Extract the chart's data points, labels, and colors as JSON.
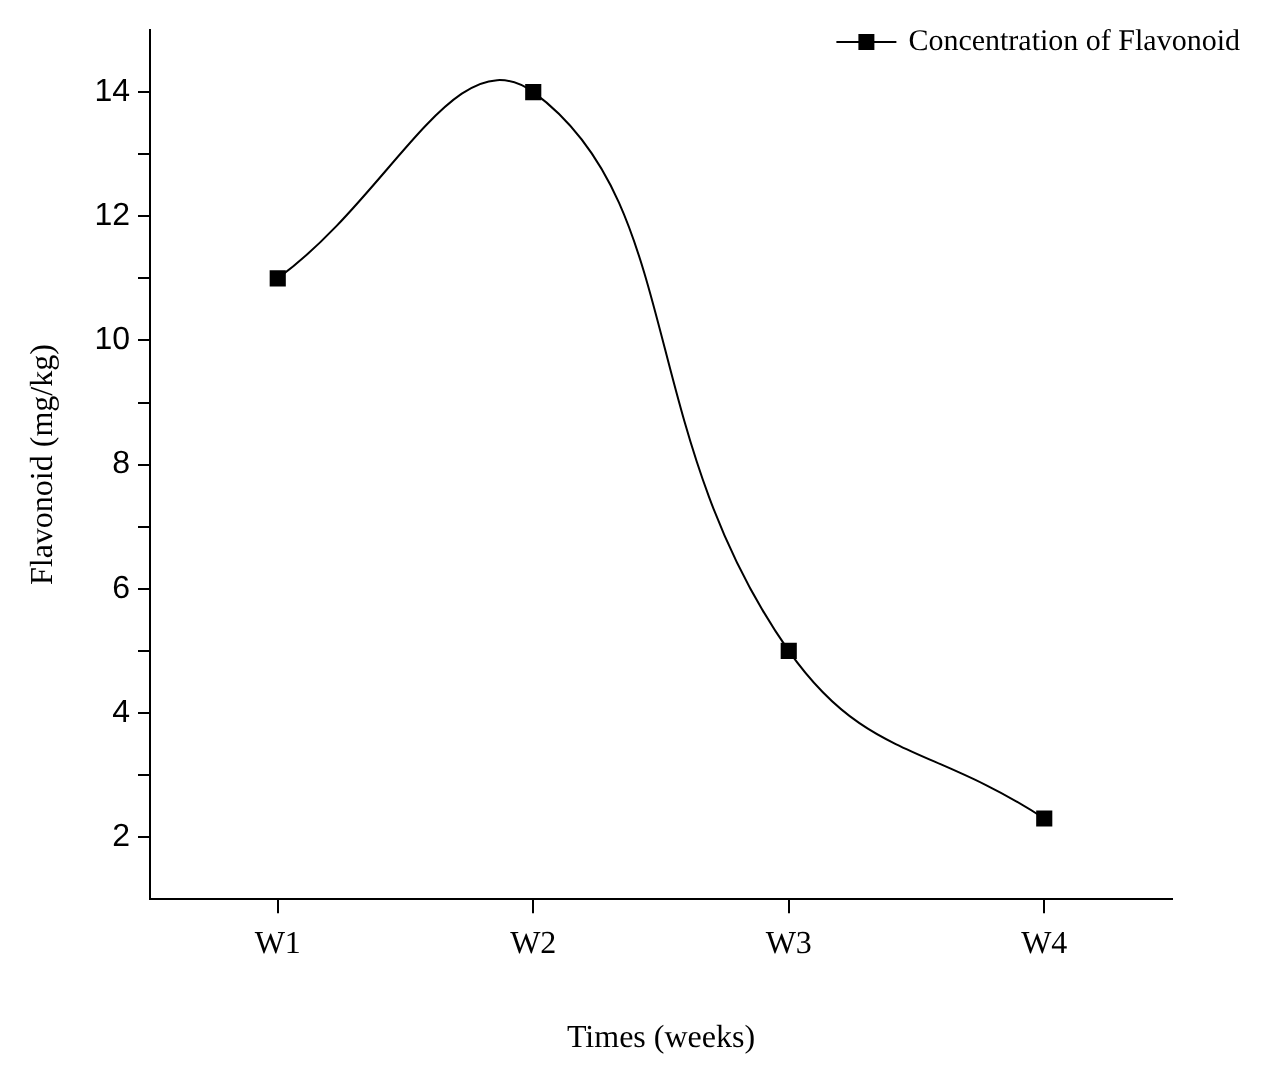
{
  "chart_data": {
    "type": "line",
    "xlabel": "Times (weeks)",
    "ylabel": "Flavonoid (mg/kg)",
    "categories": [
      "W1",
      "W2",
      "W3",
      "W4"
    ],
    "series": [
      {
        "name": "Concentration of Flavonoid",
        "color": "#000000",
        "values": [
          11,
          14,
          5,
          2.3
        ]
      }
    ],
    "ylim": [
      1,
      15
    ],
    "yticks": [
      2,
      {
        "value": 3,
        "label": null
      },
      4,
      {
        "value": 5,
        "label": null
      },
      6,
      {
        "value": 7,
        "label": null
      },
      8,
      {
        "value": 9,
        "label": null
      },
      10,
      {
        "value": 11,
        "label": null
      },
      12,
      {
        "value": 13,
        "label": null
      },
      14
    ],
    "grid": false,
    "legend": "top right",
    "marker": "square",
    "line_style": "solid"
  }
}
